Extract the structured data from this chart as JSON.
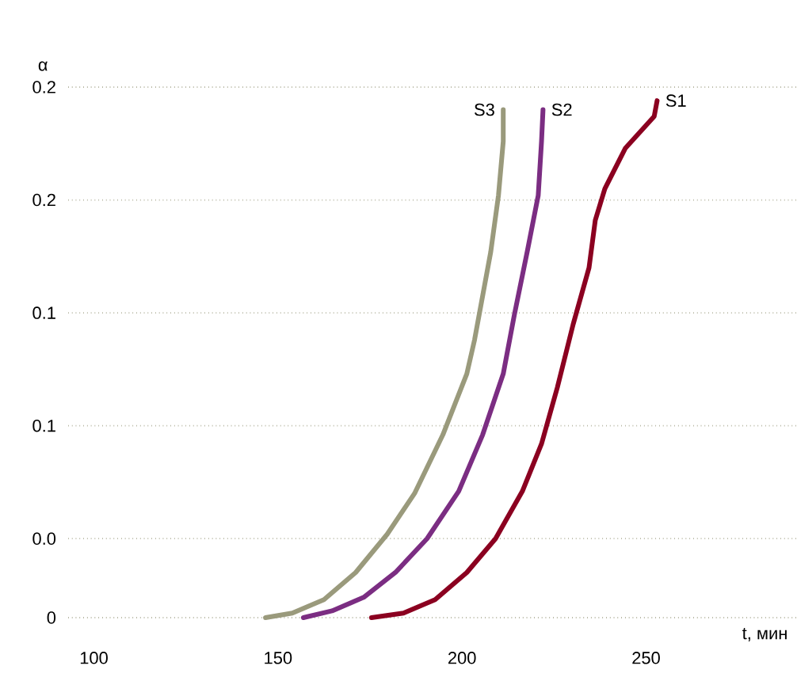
{
  "chart_data": {
    "type": "line",
    "xlabel": "t,  мин",
    "ylabel": "α",
    "xlim": [
      93,
      291
    ],
    "ylim": [
      0,
      0.235
    ],
    "xticks": [
      100,
      150,
      200,
      250
    ],
    "yticks": [
      {
        "value": 0,
        "label": "0"
      },
      {
        "value": 0.035,
        "label": "0.0"
      },
      {
        "value": 0.085,
        "label": "0.1"
      },
      {
        "value": 0.135,
        "label": "0.1"
      },
      {
        "value": 0.185,
        "label": "0.2"
      },
      {
        "value": 0.235,
        "label": "0.2"
      }
    ],
    "grid": "y",
    "series": [
      {
        "name": "S3",
        "color": "#9a9a7c",
        "x": [
          146.6,
          153.9,
          162.5,
          171.1,
          179.7,
          187.1,
          194.8,
          201.3,
          203.4,
          207.8,
          209.9,
          211.2,
          211.2
        ],
        "values": [
          0,
          0.002,
          0.008,
          0.02,
          0.037,
          0.055,
          0.081,
          0.108,
          0.123,
          0.162,
          0.187,
          0.211,
          0.225
        ]
      },
      {
        "name": "S2",
        "color": "#7b2d82",
        "x": [
          156.9,
          164.7,
          173.3,
          181.9,
          190.5,
          199.1,
          205.6,
          211.2,
          214.2,
          217.7,
          220.7,
          221.6,
          222.0
        ],
        "values": [
          0,
          0.003,
          0.009,
          0.02,
          0.035,
          0.056,
          0.081,
          0.108,
          0.134,
          0.162,
          0.187,
          0.211,
          0.225
        ]
      },
      {
        "name": "S1",
        "color": "#8b0020",
        "x": [
          175.4,
          184.1,
          192.7,
          201.3,
          209.1,
          216.4,
          221.6,
          225.9,
          230.2,
          234.5,
          236.2,
          238.8,
          244.4,
          252.2,
          253.0
        ],
        "values": [
          0,
          0.002,
          0.008,
          0.02,
          0.035,
          0.056,
          0.077,
          0.102,
          0.13,
          0.155,
          0.176,
          0.19,
          0.208,
          0.222,
          0.229
        ]
      }
    ]
  }
}
